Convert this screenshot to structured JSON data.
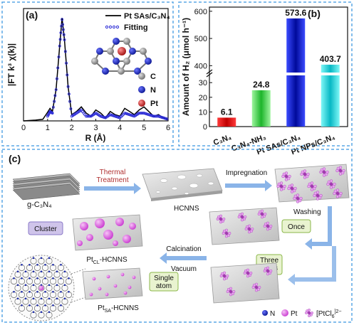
{
  "panel_a": {
    "label": "(a)",
    "legend": [
      "Pt SAs/C₃N₄",
      "Fitting"
    ],
    "ylabel": "|FT k³ χ(k)|",
    "xlabel": "R (Å)",
    "xticks": [
      "0",
      "1",
      "2",
      "3",
      "4",
      "5",
      "6"
    ],
    "atoms": [
      "C",
      "N",
      "Pt"
    ],
    "colors": {
      "C": "#9a9a9a",
      "N": "#1f2fa8",
      "Pt": "#c0392b",
      "exp": "#000000",
      "fit": "#2b2bd6"
    }
  },
  "chart_data": [
    {
      "type": "line",
      "xlabel": "R (Å)",
      "ylabel": "|FT k³ χ(k)|",
      "xlim": [
        0,
        6
      ],
      "series": [
        {
          "name": "Pt SAs/C₃N₄",
          "x": [
            0,
            0.5,
            0.8,
            1.0,
            1.1,
            1.2,
            1.35,
            1.5,
            1.6,
            1.7,
            1.85,
            2.0,
            2.2,
            2.4,
            2.6,
            2.8,
            3.0,
            3.2,
            3.4,
            3.6,
            3.8,
            4.0,
            4.2,
            4.4,
            4.6,
            4.8,
            5.0,
            5.2,
            5.4,
            5.6,
            5.8,
            6.0
          ],
          "y": [
            0,
            0.05,
            0.1,
            0.55,
            0.8,
            0.6,
            2.0,
            4.8,
            6.6,
            5.2,
            2.2,
            0.4,
            0.6,
            0.9,
            0.5,
            0.3,
            0.7,
            0.5,
            0.2,
            0.6,
            0.4,
            0.3,
            0.8,
            0.6,
            0.4,
            0.7,
            0.9,
            0.6,
            0.3,
            0.4,
            0.2,
            0.1
          ]
        },
        {
          "name": "Fitting",
          "x": [
            1.0,
            1.1,
            1.2,
            1.35,
            1.5,
            1.6,
            1.7,
            1.85,
            2.0,
            2.2,
            2.4,
            2.6,
            2.8,
            3.0,
            3.2,
            3.4,
            3.6,
            3.8,
            4.0,
            4.2,
            4.4,
            4.6,
            4.8,
            5.0,
            5.2,
            5.4,
            5.6,
            5.8,
            6.0
          ],
          "y": [
            0.3,
            0.6,
            0.5,
            2.0,
            4.8,
            6.5,
            5.2,
            2.2,
            0.3,
            0.5,
            0.7,
            0.3,
            0.3,
            0.5,
            0.3,
            0.2,
            0.4,
            0.3,
            0.2,
            0.5,
            0.4,
            0.3,
            0.5,
            0.5,
            0.4,
            0.3,
            0.3,
            0.2,
            0.1
          ]
        }
      ]
    },
    {
      "type": "bar",
      "ylabel": "Amount of H₂ (μmol h⁻¹)",
      "categories": [
        "C₃N₄",
        "C₃N₄-NH₃",
        "Pt SAs/C₃N₄",
        "Pt NPs/C₃N₄"
      ],
      "values": [
        6.1,
        24.8,
        573.6,
        403.7
      ],
      "value_labels": [
        "6.1",
        "24.8",
        "573.6",
        "403.7"
      ],
      "yticks": [
        "0",
        "10",
        "20",
        "30",
        "400",
        "500",
        "600"
      ],
      "axis_break": [
        40,
        380
      ],
      "colors": [
        "#e11d1d",
        "#27c53a",
        "#1424d6",
        "#14d6d6"
      ]
    }
  ],
  "panel_b": {
    "label": "(b)"
  },
  "panel_c": {
    "label": "(c)",
    "gcn": "g-C₃N₄",
    "thermal": "Thermal\nTreatment",
    "hcnns": "HCNNS",
    "impregnation": "Impregnation",
    "washing": "Washing",
    "once": "Once",
    "three_times": "Three\ntimes",
    "calcination": "Calcination",
    "vacuum": "Vacuum",
    "cluster": "Cluster",
    "ptcl_hcnns": "Pt",
    "ptcl_sub": "CL",
    "ptcl_suffix": "-HCNNS",
    "single_atom": "Single\natom",
    "ptsa_hcnns": "Pt",
    "ptsa_sub": "SA",
    "ptsa_suffix": "-HCNNS",
    "legend_n": "N",
    "legend_pt": "Pt",
    "legend_ptcl": "[PtCl",
    "legend_ptcl_sub": "6",
    "legend_ptcl_sup": "]2−"
  }
}
